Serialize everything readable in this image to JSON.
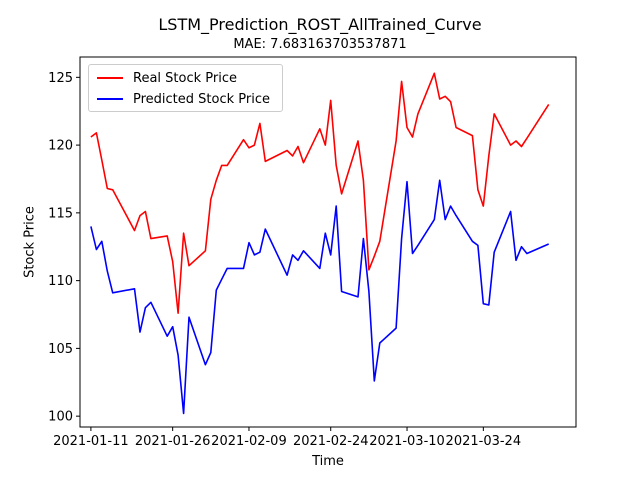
{
  "chart_data": {
    "type": "line",
    "title": "LSTM_Prediction_ROST_AllTrained_Curve",
    "subtitle": "MAE: 7.683163703537871",
    "xlabel": "Time",
    "ylabel": "Stock Price",
    "ylim": [
      99.2,
      126.5
    ],
    "xlim": [
      "2021-01-09",
      "2021-04-10"
    ],
    "x_ticks": [
      "2021-01-11",
      "2021-01-26",
      "2021-02-09",
      "2021-02-24",
      "2021-03-10",
      "2021-03-24"
    ],
    "y_ticks": [
      100,
      105,
      110,
      115,
      120,
      125
    ],
    "grid": false,
    "legend_position": "top-left",
    "x": [
      "2021-01-11",
      "2021-01-12",
      "2021-01-13",
      "2021-01-14",
      "2021-01-15",
      "2021-01-19",
      "2021-01-20",
      "2021-01-21",
      "2021-01-22",
      "2021-01-25",
      "2021-01-26",
      "2021-01-27",
      "2021-01-28",
      "2021-01-29",
      "2021-02-01",
      "2021-02-02",
      "2021-02-03",
      "2021-02-04",
      "2021-02-05",
      "2021-02-08",
      "2021-02-09",
      "2021-02-10",
      "2021-02-11",
      "2021-02-12",
      "2021-02-16",
      "2021-02-17",
      "2021-02-18",
      "2021-02-19",
      "2021-02-22",
      "2021-02-23",
      "2021-02-24",
      "2021-02-25",
      "2021-02-26",
      "2021-03-01",
      "2021-03-02",
      "2021-03-03",
      "2021-03-04",
      "2021-03-05",
      "2021-03-08",
      "2021-03-09",
      "2021-03-10",
      "2021-03-11",
      "2021-03-12",
      "2021-03-15",
      "2021-03-16",
      "2021-03-17",
      "2021-03-18",
      "2021-03-19",
      "2021-03-22",
      "2021-03-23",
      "2021-03-24",
      "2021-03-25",
      "2021-03-26",
      "2021-03-29",
      "2021-03-30",
      "2021-03-31",
      "2021-04-01",
      "2021-04-05"
    ],
    "series": [
      {
        "name": "Real Stock Price",
        "color": "#ff0000",
        "values": [
          120.6,
          120.9,
          118.9,
          116.8,
          116.7,
          113.7,
          114.8,
          115.1,
          113.1,
          113.3,
          111.4,
          107.6,
          113.5,
          111.1,
          112.2,
          116.0,
          117.4,
          118.5,
          118.5,
          120.4,
          119.8,
          120.0,
          121.6,
          118.8,
          119.6,
          119.2,
          119.9,
          118.7,
          121.2,
          120.0,
          123.3,
          118.5,
          116.4,
          120.3,
          117.4,
          110.8,
          111.8,
          112.9,
          120.3,
          124.7,
          121.3,
          120.6,
          122.3,
          125.3,
          123.4,
          123.6,
          123.2,
          121.3,
          120.7,
          116.7,
          115.5,
          119.2,
          122.3,
          120.0,
          120.3,
          119.9,
          120.5,
          123.0
        ]
      },
      {
        "name": "Predicted Stock Price",
        "color": "#0000ff",
        "values": [
          114.0,
          112.3,
          112.9,
          110.7,
          109.1,
          109.4,
          106.2,
          108.0,
          108.4,
          105.9,
          106.6,
          104.5,
          100.2,
          107.3,
          103.8,
          104.7,
          109.3,
          110.1,
          110.9,
          110.9,
          112.8,
          111.9,
          112.1,
          113.8,
          110.4,
          111.9,
          111.5,
          112.2,
          110.9,
          113.5,
          111.9,
          115.5,
          109.2,
          108.8,
          113.1,
          109.2,
          102.6,
          105.4,
          106.5,
          113.1,
          117.3,
          112.0,
          112.6,
          114.5,
          117.4,
          114.5,
          115.5,
          114.8,
          112.9,
          112.6,
          108.3,
          108.2,
          112.1,
          115.1,
          111.5,
          112.5,
          112.0,
          112.7
        ]
      }
    ]
  }
}
